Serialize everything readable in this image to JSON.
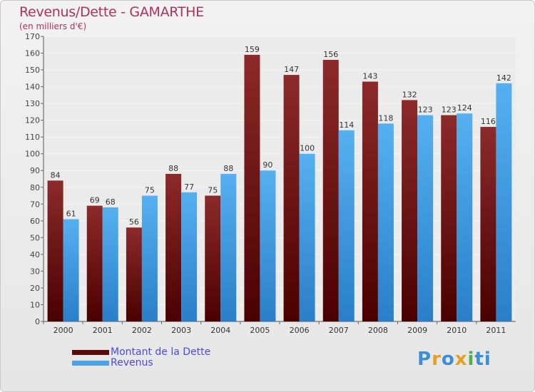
{
  "chart_data": {
    "type": "bar",
    "title": "Revenus/Dette - GAMARTHE",
    "subtitle": "(en milliers d'€)",
    "categories": [
      "2000",
      "2001",
      "2002",
      "2003",
      "2004",
      "2005",
      "2006",
      "2007",
      "2008",
      "2009",
      "2010",
      "2011"
    ],
    "series": [
      {
        "name": "Montant de la Dette",
        "color": "#7a1a1a",
        "values": [
          84,
          69,
          56,
          88,
          75,
          159,
          147,
          156,
          143,
          132,
          123,
          116
        ]
      },
      {
        "name": "Revenus",
        "color": "#4aa3e6",
        "values": [
          61,
          68,
          75,
          77,
          88,
          90,
          100,
          114,
          118,
          123,
          124,
          142
        ]
      }
    ],
    "ylim": [
      0,
      170
    ],
    "yticks": [
      0,
      10,
      20,
      30,
      40,
      50,
      60,
      70,
      80,
      90,
      100,
      110,
      120,
      130,
      140,
      150,
      160,
      170
    ],
    "grid": true,
    "legend_position": "bottom-left"
  },
  "legend": {
    "items": [
      {
        "label": "Montant de la Dette",
        "color": "#5a0a0a"
      },
      {
        "label": "Revenus",
        "color": "#4aa3e6"
      }
    ]
  },
  "logo": {
    "text": "Proxiti",
    "letters": [
      "P",
      "r",
      "o",
      "x",
      "i",
      "ti"
    ]
  }
}
